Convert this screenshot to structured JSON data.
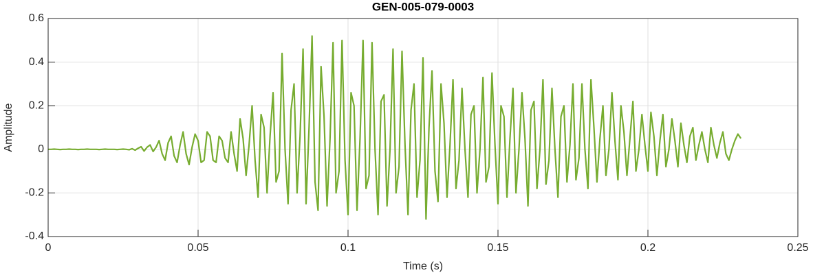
{
  "chart_data": {
    "type": "line",
    "title": "GEN-005-079-0003",
    "xlabel": "Time (s)",
    "ylabel": "Amplitude",
    "xlim": [
      0,
      0.25
    ],
    "xticks": [
      0,
      0.05,
      0.1,
      0.15,
      0.2,
      0.25
    ],
    "ylim": [
      -0.4,
      0.6
    ],
    "yticks": [
      -0.4,
      -0.2,
      0,
      0.2,
      0.4,
      0.6
    ],
    "grid": true,
    "x": [
      0,
      0.001,
      0.002,
      0.003,
      0.004,
      0.005,
      0.006,
      0.007,
      0.008,
      0.009,
      0.01,
      0.011,
      0.012,
      0.013,
      0.014,
      0.015,
      0.016,
      0.017,
      0.018,
      0.019,
      0.02,
      0.021,
      0.022,
      0.023,
      0.024,
      0.025,
      0.026,
      0.027,
      0.028,
      0.029,
      0.03,
      0.031,
      0.032,
      0.033,
      0.034,
      0.035,
      0.036,
      0.037,
      0.038,
      0.039,
      0.04,
      0.041,
      0.042,
      0.043,
      0.044,
      0.045,
      0.046,
      0.047,
      0.048,
      0.049,
      0.05,
      0.051,
      0.052,
      0.053,
      0.054,
      0.055,
      0.056,
      0.057,
      0.058,
      0.059,
      0.06,
      0.061,
      0.062,
      0.063,
      0.064,
      0.065,
      0.066,
      0.067,
      0.068,
      0.069,
      0.07,
      0.071,
      0.072,
      0.073,
      0.074,
      0.075,
      0.076,
      0.077,
      0.078,
      0.079,
      0.08,
      0.081,
      0.082,
      0.083,
      0.084,
      0.085,
      0.086,
      0.087,
      0.088,
      0.089,
      0.09,
      0.091,
      0.092,
      0.093,
      0.094,
      0.095,
      0.096,
      0.097,
      0.098,
      0.099,
      0.1,
      0.101,
      0.102,
      0.103,
      0.104,
      0.105,
      0.106,
      0.107,
      0.108,
      0.109,
      0.11,
      0.111,
      0.112,
      0.113,
      0.114,
      0.115,
      0.116,
      0.117,
      0.118,
      0.119,
      0.12,
      0.121,
      0.122,
      0.123,
      0.124,
      0.125,
      0.126,
      0.127,
      0.128,
      0.129,
      0.13,
      0.131,
      0.132,
      0.133,
      0.134,
      0.135,
      0.136,
      0.137,
      0.138,
      0.139,
      0.14,
      0.141,
      0.142,
      0.143,
      0.144,
      0.145,
      0.146,
      0.147,
      0.148,
      0.149,
      0.15,
      0.151,
      0.152,
      0.153,
      0.154,
      0.155,
      0.156,
      0.157,
      0.158,
      0.159,
      0.16,
      0.161,
      0.162,
      0.163,
      0.164,
      0.165,
      0.166,
      0.167,
      0.168,
      0.169,
      0.17,
      0.171,
      0.172,
      0.173,
      0.174,
      0.175,
      0.176,
      0.177,
      0.178,
      0.179,
      0.18,
      0.181,
      0.182,
      0.183,
      0.184,
      0.185,
      0.186,
      0.187,
      0.188,
      0.189,
      0.19,
      0.191,
      0.192,
      0.193,
      0.194,
      0.195,
      0.196,
      0.197,
      0.198,
      0.199,
      0.2,
      0.201,
      0.202,
      0.203,
      0.204,
      0.205,
      0.206,
      0.207,
      0.208,
      0.209,
      0.21,
      0.211,
      0.212,
      0.213,
      0.214,
      0.215,
      0.216,
      0.217,
      0.218,
      0.219,
      0.22,
      0.221,
      0.222,
      0.223,
      0.224,
      0.225,
      0.226,
      0.227,
      0.228,
      0.229,
      0.23,
      0.231
    ],
    "series": [
      {
        "color": "#77ac30",
        "values": [
          0,
          0,
          0.001,
          0,
          -0.001,
          0,
          0,
          0.001,
          0,
          0,
          -0.001,
          0,
          0,
          0.001,
          0,
          0,
          0,
          -0.001,
          0,
          0.001,
          0,
          0,
          0,
          -0.001,
          0,
          0.001,
          0,
          -0.002,
          0.003,
          -0.004,
          0.005,
          0.012,
          -0.008,
          0.01,
          0.02,
          -0.01,
          0.01,
          0.04,
          -0.02,
          -0.05,
          0.03,
          0.06,
          -0.03,
          -0.06,
          0.02,
          0.08,
          -0.02,
          -0.07,
          0.01,
          0.07,
          0.04,
          -0.06,
          -0.05,
          0.08,
          0.06,
          -0.05,
          -0.06,
          0.06,
          0.04,
          -0.04,
          -0.06,
          0.08,
          -0.02,
          -0.1,
          0.14,
          0.05,
          -0.12,
          0.02,
          0.2,
          -0.05,
          -0.22,
          0.16,
          0.1,
          -0.2,
          0.06,
          0.26,
          -0.15,
          -0.1,
          0.44,
          0,
          -0.25,
          0.18,
          0.3,
          -0.2,
          0.06,
          0.46,
          -0.25,
          0.1,
          0.52,
          -0.15,
          -0.28,
          0.38,
          0.15,
          -0.26,
          0.05,
          0.49,
          -0.2,
          -0.1,
          0.5,
          -0.05,
          -0.3,
          0.26,
          0.2,
          -0.28,
          0.05,
          0.5,
          -0.18,
          -0.12,
          0.49,
          0,
          -0.3,
          0.22,
          0.25,
          -0.26,
          0,
          0.46,
          -0.2,
          -0.08,
          0.45,
          0.02,
          -0.3,
          0.18,
          0.3,
          -0.22,
          -0.05,
          0.42,
          -0.32,
          0.1,
          0.36,
          -0.1,
          -0.24,
          0.3,
          0.12,
          -0.22,
          0.02,
          0.32,
          -0.18,
          -0.05,
          0.28,
          0,
          -0.22,
          0.16,
          0.2,
          -0.2,
          0,
          0.33,
          -0.15,
          -0.08,
          0.35,
          0.02,
          -0.25,
          0.2,
          0.15,
          -0.22,
          0.05,
          0.28,
          -0.2,
          0,
          0.26,
          0.05,
          -0.26,
          0.18,
          0.22,
          -0.18,
          0,
          0.32,
          -0.16,
          -0.05,
          0.28,
          0,
          -0.22,
          0.15,
          0.2,
          -0.15,
          0.02,
          0.3,
          -0.14,
          -0.04,
          0.3,
          0,
          -0.18,
          0.32,
          0.1,
          -0.15,
          0.05,
          0.2,
          -0.12,
          0,
          0.26,
          0.04,
          -0.14,
          0.2,
          0.08,
          -0.12,
          0.05,
          0.22,
          -0.1,
          0,
          0.16,
          0.02,
          -0.1,
          0.17,
          0.06,
          -0.12,
          0.04,
          0.16,
          -0.08,
          0,
          0.14,
          0.04,
          -0.08,
          0.12,
          0.02,
          -0.06,
          0.06,
          0.1,
          -0.05,
          0.02,
          0.08,
          0,
          -0.06,
          0.1,
          0.02,
          -0.04,
          0.03,
          0.08,
          -0.02,
          -0.05,
          0,
          0.04,
          0.07,
          0.05
        ]
      }
    ]
  }
}
